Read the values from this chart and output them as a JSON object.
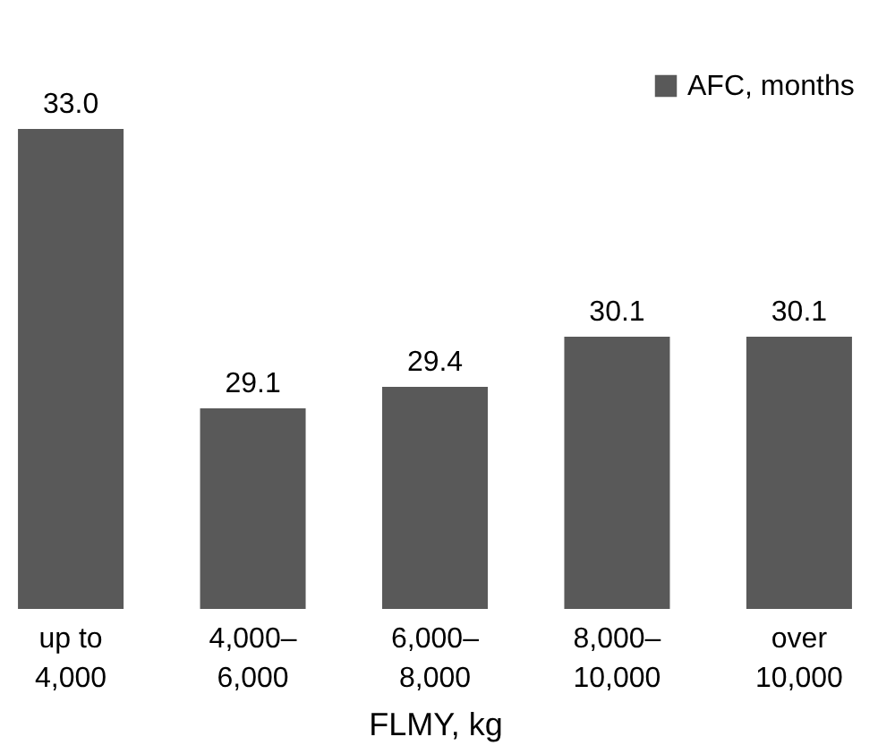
{
  "chart_data": {
    "type": "bar",
    "categories": [
      "up to\n4,000",
      "4,000–\n6,000",
      "6,000–\n8,000",
      "8,000–\n10,000",
      "over\n10,000"
    ],
    "series": [
      {
        "name": "AFC, months",
        "color": "#595959",
        "values": [
          33.0,
          29.1,
          29.4,
          30.1,
          30.1
        ],
        "value_labels": [
          "33.0",
          "29.1",
          "29.4",
          "30.1",
          "30.1"
        ]
      }
    ],
    "xlabel": "FLMY, kg",
    "ylim": [
      26.3,
      33.8
    ],
    "legend": "top right",
    "grid": false
  }
}
